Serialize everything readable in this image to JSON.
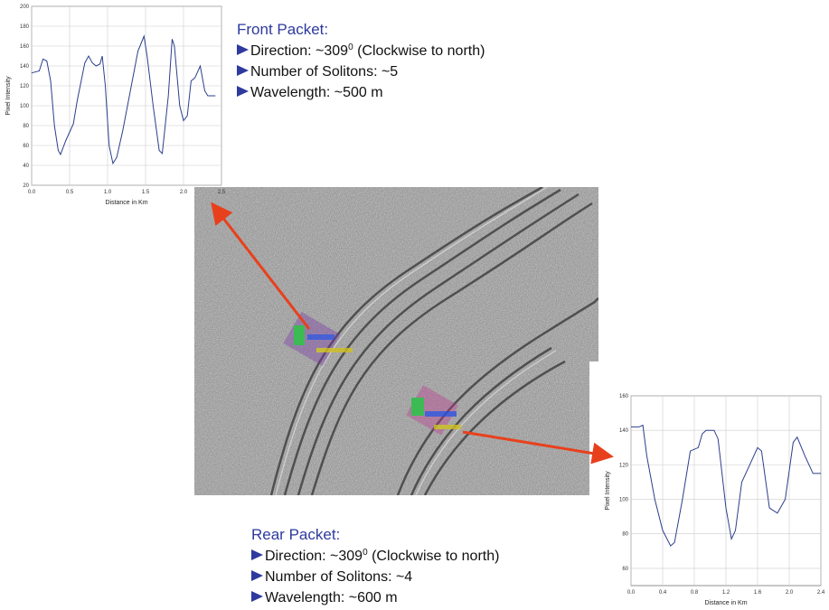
{
  "chart_data": [
    {
      "type": "line",
      "ylabel": "Pixel Intensity",
      "xlabel": "Distance in Km",
      "color": "#2b3f8c",
      "grid": true,
      "xlim": [
        0,
        2.5
      ],
      "ylim": [
        20,
        200
      ],
      "xticks": [
        {
          "value": 0,
          "label": "0.0"
        },
        0.5,
        {
          "value": 1,
          "label": "1.0"
        },
        1.5,
        {
          "value": 2,
          "label": "2.0"
        },
        2.5
      ],
      "yticks": [
        20,
        40,
        60,
        80,
        100,
        120,
        140,
        160,
        180,
        200
      ],
      "x": [
        0,
        0.1,
        0.15,
        0.2,
        0.25,
        0.3,
        0.35,
        0.38,
        0.45,
        0.55,
        0.6,
        0.7,
        0.75,
        0.8,
        0.85,
        0.9,
        0.93,
        0.97,
        1.02,
        1.07,
        1.12,
        1.2,
        1.3,
        1.4,
        1.48,
        1.52,
        1.6,
        1.68,
        1.72,
        1.8,
        1.85,
        1.88,
        1.95,
        2.0,
        2.05,
        2.1,
        2.15,
        2.22,
        2.28,
        2.32,
        2.42
      ],
      "values": [
        133,
        135,
        147,
        145,
        125,
        80,
        55,
        51,
        65,
        82,
        105,
        143,
        150,
        143,
        140,
        142,
        150,
        120,
        60,
        42,
        48,
        75,
        115,
        155,
        170,
        150,
        100,
        55,
        52,
        110,
        167,
        160,
        100,
        85,
        90,
        125,
        128,
        140,
        115,
        110,
        110
      ]
    },
    {
      "type": "line",
      "ylabel": "Pixel Intensity",
      "xlabel": "Distance in Km",
      "color": "#2b3f8c",
      "grid": true,
      "xlim": [
        0,
        2.4
      ],
      "ylim": [
        50,
        160
      ],
      "xticks": [
        {
          "value": 0,
          "label": "0.0"
        },
        0.4,
        0.8,
        1.2,
        1.6,
        {
          "value": 2,
          "label": "2.0"
        },
        2.4
      ],
      "yticks": [
        60,
        80,
        100,
        120,
        140,
        160
      ],
      "x": [
        0,
        0.1,
        0.15,
        0.2,
        0.3,
        0.4,
        0.5,
        0.55,
        0.65,
        0.75,
        0.85,
        0.9,
        0.95,
        1.05,
        1.1,
        1.2,
        1.27,
        1.32,
        1.4,
        1.5,
        1.6,
        1.65,
        1.75,
        1.85,
        1.95,
        2.05,
        2.1,
        2.2,
        2.3,
        2.4
      ],
      "values": [
        142,
        142,
        143,
        125,
        100,
        82,
        73,
        75,
        100,
        128,
        130,
        138,
        140,
        140,
        135,
        95,
        77,
        82,
        110,
        120,
        130,
        128,
        95,
        92,
        100,
        133,
        136,
        125,
        115,
        115
      ]
    }
  ],
  "front_packet": {
    "title": "Front Packet:",
    "items": [
      {
        "text": "Direction: ~309",
        "sup": "0",
        "after": " (Clockwise to north)"
      },
      {
        "text": "Number of Solitons: ~5"
      },
      {
        "text": "Wavelength:  ~500 m"
      }
    ]
  },
  "rear_packet": {
    "title": "Rear Packet:",
    "items": [
      {
        "text": "Direction: ~309",
        "sup": "0",
        "after": " (Clockwise to north)"
      },
      {
        "text": "Number of Solitons: ~4"
      },
      {
        "text": "Wavelength:  ~600 m"
      }
    ]
  }
}
